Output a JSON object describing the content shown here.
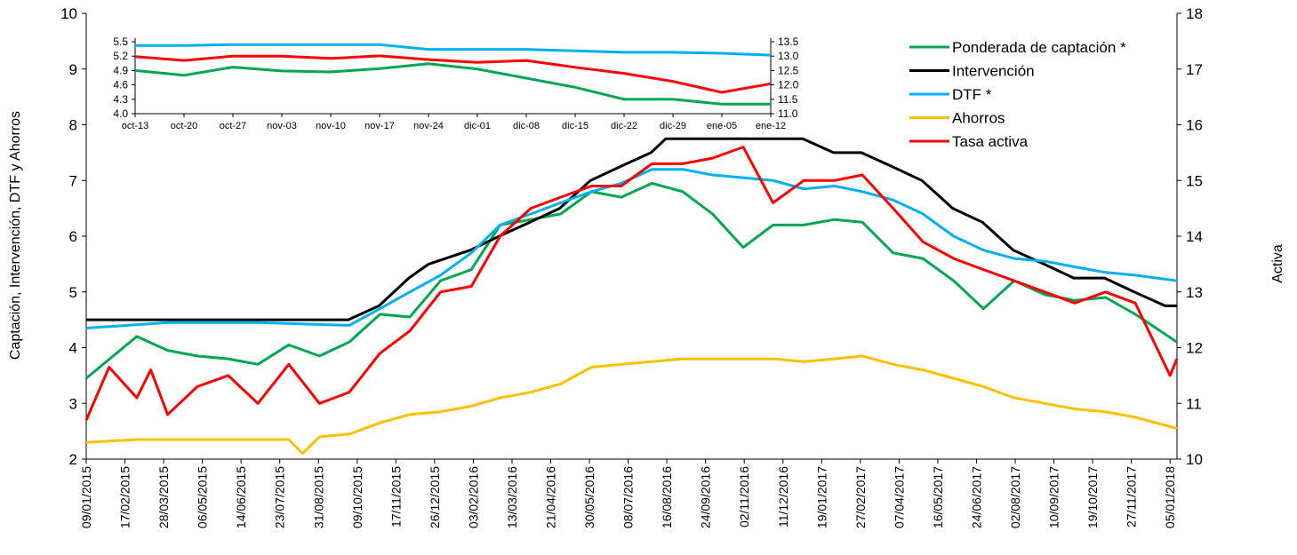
{
  "chart_data": [
    {
      "type": "line",
      "title": "",
      "ylabel": "Captación,  Intervención,  DTF  y Ahorros",
      "y2label": "Activa",
      "ylim": [
        2,
        10
      ],
      "y2lim": [
        10,
        18
      ],
      "yticks": [
        "2",
        "3",
        "4",
        "5",
        "6",
        "7",
        "8",
        "9",
        "10"
      ],
      "y2ticks": [
        "10",
        "11",
        "12",
        "13",
        "14",
        "15",
        "16",
        "17",
        "18"
      ],
      "x_range": [
        "09/01/2015",
        "12/01/2018"
      ],
      "xticks": [
        "09/01/2015",
        "17/02/2015",
        "28/03/2015",
        "06/05/2015",
        "14/06/2015",
        "23/07/2015",
        "31/08/2015",
        "09/10/2015",
        "17/11/2015",
        "26/12/2015",
        "03/02/2016",
        "13/03/2016",
        "21/04/2016",
        "30/05/2016",
        "08/07/2016",
        "16/08/2016",
        "24/09/2016",
        "02/11/2016",
        "11/12/2016",
        "19/01/2017",
        "27/02/2017",
        "07/04/2017",
        "16/05/2017",
        "24/06/2017",
        "02/08/2017",
        "10/09/2017",
        "19/10/2017",
        "27/11/2017",
        "05/01/2018"
      ],
      "legend_position": "top-right",
      "grid": false,
      "series": [
        {
          "name": "Ponderada de captación *",
          "color": "#00a651",
          "axis": "left",
          "x": [
            "09/01/2015",
            "01/03/2015",
            "01/04/2015",
            "01/05/2015",
            "01/06/2015",
            "01/07/2015",
            "01/08/2015",
            "01/09/2015",
            "01/10/2015",
            "01/11/2015",
            "01/12/2015",
            "01/01/2016",
            "01/02/2016",
            "01/03/2016",
            "01/04/2016",
            "01/05/2016",
            "01/06/2016",
            "01/07/2016",
            "01/08/2016",
            "01/09/2016",
            "01/10/2016",
            "01/11/2016",
            "01/12/2016",
            "01/01/2017",
            "01/02/2017",
            "01/03/2017",
            "01/04/2017",
            "01/05/2017",
            "01/06/2017",
            "01/07/2017",
            "01/08/2017",
            "01/09/2017",
            "01/10/2017",
            "01/11/2017",
            "01/12/2017",
            "12/01/2018"
          ],
          "values": [
            3.45,
            4.2,
            3.95,
            3.85,
            3.8,
            3.7,
            4.05,
            3.85,
            4.1,
            4.6,
            4.55,
            5.2,
            5.4,
            6.2,
            6.3,
            6.4,
            6.8,
            6.7,
            6.95,
            6.8,
            6.4,
            5.8,
            6.2,
            6.2,
            6.3,
            6.25,
            5.7,
            5.6,
            5.2,
            4.7,
            5.2,
            4.95,
            4.85,
            4.9,
            4.6,
            4.1
          ]
        },
        {
          "name": "Intervención",
          "color": "#000000",
          "axis": "left",
          "x": [
            "09/01/2015",
            "30/09/2015",
            "31/10/2015",
            "30/11/2015",
            "20/12/2015",
            "31/01/2016",
            "29/02/2016",
            "31/03/2016",
            "30/04/2016",
            "31/05/2016",
            "30/06/2016",
            "31/07/2016",
            "15/08/2016",
            "31/12/2016",
            "31/01/2017",
            "28/02/2017",
            "31/03/2017",
            "30/04/2017",
            "31/05/2017",
            "30/06/2017",
            "31/07/2017",
            "31/08/2017",
            "30/09/2017",
            "31/10/2017",
            "30/11/2017",
            "31/12/2017",
            "12/01/2018"
          ],
          "values": [
            4.5,
            4.5,
            4.75,
            5.25,
            5.5,
            5.75,
            6.0,
            6.25,
            6.5,
            7.0,
            7.25,
            7.5,
            7.75,
            7.75,
            7.5,
            7.5,
            7.25,
            7.0,
            6.5,
            6.25,
            5.75,
            5.5,
            5.25,
            5.25,
            5.0,
            4.75,
            4.75
          ]
        },
        {
          "name": "DTF *",
          "color": "#00b0f0",
          "axis": "left",
          "x": [
            "09/01/2015",
            "01/04/2015",
            "01/07/2015",
            "01/10/2015",
            "01/11/2015",
            "01/12/2015",
            "01/01/2016",
            "01/02/2016",
            "01/03/2016",
            "01/04/2016",
            "01/05/2016",
            "01/06/2016",
            "01/07/2016",
            "01/08/2016",
            "01/09/2016",
            "01/10/2016",
            "01/11/2016",
            "01/12/2016",
            "01/01/2017",
            "01/02/2017",
            "01/03/2017",
            "01/04/2017",
            "01/05/2017",
            "01/06/2017",
            "01/07/2017",
            "01/08/2017",
            "01/09/2017",
            "01/10/2017",
            "01/11/2017",
            "01/12/2017",
            "12/01/2018"
          ],
          "values": [
            4.35,
            4.45,
            4.45,
            4.4,
            4.7,
            5.0,
            5.3,
            5.7,
            6.2,
            6.4,
            6.6,
            6.8,
            6.95,
            7.2,
            7.2,
            7.1,
            7.05,
            7.0,
            6.85,
            6.9,
            6.8,
            6.65,
            6.4,
            6.0,
            5.75,
            5.6,
            5.55,
            5.45,
            5.35,
            5.3,
            5.2
          ]
        },
        {
          "name": "Ahorros",
          "color": "#ffc000",
          "axis": "left",
          "x": [
            "09/01/2015",
            "01/03/2015",
            "01/05/2015",
            "01/07/2015",
            "01/08/2015",
            "15/08/2015",
            "01/09/2015",
            "01/10/2015",
            "01/11/2015",
            "01/12/2015",
            "01/01/2016",
            "01/02/2016",
            "01/03/2016",
            "01/04/2016",
            "01/05/2016",
            "01/06/2016",
            "01/07/2016",
            "01/08/2016",
            "01/09/2016",
            "01/10/2016",
            "01/11/2016",
            "01/12/2016",
            "01/01/2017",
            "01/02/2017",
            "01/03/2017",
            "01/04/2017",
            "01/05/2017",
            "01/06/2017",
            "01/07/2017",
            "01/08/2017",
            "01/09/2017",
            "01/10/2017",
            "01/11/2017",
            "01/12/2017",
            "12/01/2018"
          ],
          "values": [
            2.3,
            2.35,
            2.35,
            2.35,
            2.35,
            2.1,
            2.4,
            2.45,
            2.65,
            2.8,
            2.85,
            2.95,
            3.1,
            3.2,
            3.35,
            3.65,
            3.7,
            3.75,
            3.8,
            3.8,
            3.8,
            3.8,
            3.75,
            3.8,
            3.85,
            3.7,
            3.6,
            3.45,
            3.3,
            3.1,
            3.0,
            2.9,
            2.85,
            2.75,
            2.55
          ]
        },
        {
          "name": "Tasa activa",
          "color": "#ff0000",
          "axis": "right",
          "x": [
            "09/01/2015",
            "01/02/2015",
            "01/03/2015",
            "15/03/2015",
            "01/04/2015",
            "01/05/2015",
            "01/06/2015",
            "01/07/2015",
            "01/08/2015",
            "01/09/2015",
            "01/10/2015",
            "01/11/2015",
            "01/12/2015",
            "01/01/2016",
            "01/02/2016",
            "01/03/2016",
            "01/04/2016",
            "01/05/2016",
            "01/06/2016",
            "01/07/2016",
            "01/08/2016",
            "01/09/2016",
            "01/10/2016",
            "01/11/2016",
            "01/12/2016",
            "01/01/2017",
            "01/02/2017",
            "01/03/2017",
            "01/04/2017",
            "01/05/2017",
            "01/06/2017",
            "01/07/2017",
            "01/08/2017",
            "01/09/2017",
            "01/10/2017",
            "01/11/2017",
            "01/12/2017",
            "05/01/2018",
            "12/01/2018"
          ],
          "values": [
            10.7,
            11.65,
            11.1,
            11.6,
            10.8,
            11.3,
            11.5,
            11.0,
            11.7,
            11.0,
            11.2,
            11.9,
            12.3,
            13.0,
            13.1,
            14.0,
            14.5,
            14.7,
            14.9,
            14.9,
            15.3,
            15.3,
            15.4,
            15.6,
            14.6,
            15.0,
            15.0,
            15.1,
            14.5,
            13.9,
            13.6,
            13.4,
            13.2,
            13.0,
            12.8,
            13.0,
            12.8,
            11.5,
            11.8
          ]
        }
      ]
    },
    {
      "type": "line",
      "title": "",
      "inset": true,
      "ylim": [
        4.0,
        5.5
      ],
      "y2lim": [
        11.0,
        13.5
      ],
      "yticks": [
        "4.0",
        "4.3",
        "4.6",
        "4.9",
        "5.2",
        "5.5"
      ],
      "y2ticks": [
        "11.0",
        "11.5",
        "12.0",
        "12.5",
        "13.0",
        "13.5"
      ],
      "categories": [
        "oct-13",
        "oct-20",
        "oct-27",
        "nov-03",
        "nov-10",
        "nov-17",
        "nov-24",
        "dic-01",
        "dic-08",
        "dic-15",
        "dic-22",
        "dic-29",
        "ene-05",
        "ene-12"
      ],
      "series": [
        {
          "name": "Ponderada de captación *",
          "color": "#00a651",
          "axis": "left",
          "values": [
            4.9,
            4.8,
            4.97,
            4.89,
            4.87,
            4.94,
            5.04,
            4.93,
            4.74,
            4.55,
            4.3,
            4.3,
            4.2,
            4.2
          ]
        },
        {
          "name": "DTF *",
          "color": "#00b0f0",
          "axis": "left",
          "values": [
            5.42,
            5.42,
            5.44,
            5.44,
            5.44,
            5.44,
            5.34,
            5.34,
            5.34,
            5.31,
            5.28,
            5.28,
            5.26,
            5.22
          ]
        },
        {
          "name": "Tasa activa",
          "color": "#ff0000",
          "axis": "right",
          "values": [
            12.98,
            12.85,
            13.0,
            13.0,
            12.92,
            13.01,
            12.88,
            12.78,
            12.85,
            12.61,
            12.4,
            12.12,
            11.74,
            12.04
          ]
        }
      ]
    }
  ]
}
